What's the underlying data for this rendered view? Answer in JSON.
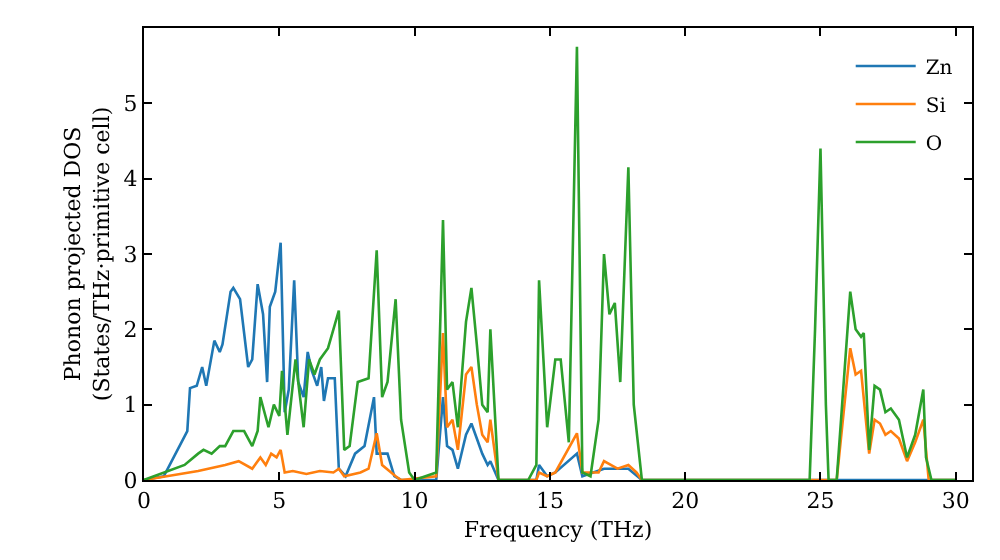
{
  "chart_data": {
    "type": "line",
    "xlabel": "Frequency (THz)",
    "ylabel": "Phonon projected DOS\n(States/THz·primitive cell)",
    "xlim": [
      0,
      30.6
    ],
    "ylim": [
      0,
      6
    ],
    "xticks": [
      0,
      5,
      10,
      15,
      20,
      25,
      30
    ],
    "yticks": [
      0,
      1,
      2,
      3,
      4,
      5
    ],
    "legend": "top right",
    "marker": "none",
    "line_style": "solid",
    "series": [
      {
        "name": "Zn",
        "color": "#1f77b4",
        "x": [
          0,
          0.73,
          1.6,
          1.7,
          1.95,
          2.15,
          2.3,
          2.6,
          2.8,
          2.9,
          3.2,
          3.3,
          3.55,
          3.85,
          4.0,
          4.2,
          4.4,
          4.55,
          4.65,
          4.85,
          5.05,
          5.2,
          5.35,
          5.55,
          5.7,
          5.9,
          6.05,
          6.2,
          6.4,
          6.55,
          6.65,
          6.8,
          7.05,
          7.2,
          7.45,
          7.8,
          8.15,
          8.5,
          8.6,
          9.0,
          9.25,
          9.5,
          10.8,
          11.05,
          11.2,
          11.4,
          11.6,
          11.9,
          12.1,
          12.3,
          12.5,
          12.7,
          12.8,
          13.1,
          14.5,
          14.6,
          14.9,
          15.2,
          16.0,
          16.2,
          17.0,
          17.9,
          18.4,
          30
        ],
        "values": [
          0,
          0.05,
          0.65,
          1.22,
          1.25,
          1.5,
          1.25,
          1.85,
          1.7,
          1.8,
          2.5,
          2.55,
          2.4,
          1.5,
          1.6,
          2.6,
          2.2,
          1.3,
          2.3,
          2.5,
          3.15,
          0.9,
          1.2,
          2.65,
          1.3,
          1.1,
          1.7,
          1.45,
          1.25,
          1.5,
          1.05,
          1.35,
          1.35,
          0.15,
          0.05,
          0.35,
          0.45,
          1.1,
          0.35,
          0.35,
          0.05,
          0,
          0,
          1.1,
          0.45,
          0.4,
          0.15,
          0.6,
          0.75,
          0.55,
          0.35,
          0.2,
          0.25,
          0,
          0,
          0.2,
          0.05,
          0.1,
          0.35,
          0.05,
          0.15,
          0.15,
          0,
          0
        ]
      },
      {
        "name": "Si",
        "color": "#ff7f0e",
        "x": [
          0,
          2,
          3,
          3.5,
          4,
          4.3,
          4.5,
          4.7,
          4.9,
          5.05,
          5.2,
          5.5,
          6,
          6.5,
          7,
          7.2,
          7.4,
          8,
          8.3,
          8.6,
          8.8,
          9.3,
          9.5,
          10.8,
          11.05,
          11.2,
          11.4,
          11.6,
          11.9,
          12.1,
          12.3,
          12.5,
          12.7,
          12.8,
          13.1,
          14.5,
          14.6,
          14.9,
          15.2,
          16.0,
          16.2,
          16.8,
          17.0,
          17.5,
          17.9,
          18.2,
          18.4,
          25.6,
          26.1,
          26.3,
          26.5,
          26.8,
          27.0,
          27.2,
          27.4,
          27.6,
          27.9,
          28.2,
          28.5,
          28.8,
          29.0,
          30
        ],
        "values": [
          0,
          0.12,
          0.2,
          0.25,
          0.15,
          0.3,
          0.2,
          0.35,
          0.3,
          0.4,
          0.1,
          0.12,
          0.08,
          0.12,
          0.1,
          0.15,
          0.05,
          0.1,
          0.15,
          0.62,
          0.2,
          0.05,
          0,
          0.05,
          1.95,
          0.7,
          0.8,
          0.4,
          1.4,
          1.5,
          1.0,
          0.6,
          0.5,
          0.8,
          0,
          0,
          0.1,
          0.05,
          0.1,
          0.62,
          0.1,
          0.1,
          0.25,
          0.15,
          0.2,
          0.1,
          0,
          0,
          1.75,
          1.4,
          1.45,
          0.35,
          0.8,
          0.75,
          0.6,
          0.65,
          0.55,
          0.25,
          0.5,
          0.8,
          0,
          0
        ]
      },
      {
        "name": "O",
        "color": "#2ca02c",
        "x": [
          0,
          1.5,
          2,
          2.2,
          2.5,
          2.8,
          3.0,
          3.3,
          3.7,
          4.0,
          4.2,
          4.3,
          4.6,
          4.8,
          5.0,
          5.1,
          5.3,
          5.6,
          5.9,
          6.1,
          6.3,
          6.5,
          6.8,
          7.0,
          7.2,
          7.4,
          7.6,
          7.9,
          8.3,
          8.6,
          8.8,
          9.0,
          9.3,
          9.5,
          9.8,
          10,
          10.8,
          11.05,
          11.2,
          11.4,
          11.6,
          11.9,
          12.1,
          12.3,
          12.5,
          12.7,
          12.8,
          13.1,
          14.2,
          14.5,
          14.6,
          14.9,
          15.2,
          15.4,
          15.7,
          16.0,
          16.2,
          16.5,
          16.8,
          17.0,
          17.2,
          17.4,
          17.6,
          17.9,
          18.1,
          18.4,
          24.6,
          24.8,
          25.0,
          25.2,
          25.3,
          25.6,
          25.8,
          26.1,
          26.3,
          26.5,
          26.6,
          26.8,
          27.0,
          27.2,
          27.4,
          27.6,
          27.9,
          28.2,
          28.5,
          28.8,
          28.9,
          29.1,
          30
        ],
        "values": [
          0,
          0.2,
          0.35,
          0.4,
          0.35,
          0.45,
          0.45,
          0.65,
          0.65,
          0.45,
          0.65,
          1.1,
          0.7,
          1.0,
          0.85,
          1.45,
          0.6,
          1.6,
          0.7,
          1.6,
          1.4,
          1.6,
          1.75,
          2.0,
          2.25,
          0.4,
          0.45,
          1.3,
          1.35,
          3.05,
          1.1,
          1.3,
          2.4,
          0.8,
          0.1,
          0,
          0.1,
          3.45,
          1.2,
          1.3,
          0.7,
          2.1,
          2.55,
          1.8,
          1.0,
          0.9,
          2.0,
          0,
          0,
          0.2,
          2.65,
          0.7,
          1.6,
          1.6,
          0.5,
          5.75,
          0.1,
          0.05,
          0.8,
          3.0,
          2.2,
          2.35,
          1.3,
          4.15,
          1.0,
          0,
          0,
          2.0,
          4.4,
          1.0,
          0,
          0,
          1.0,
          2.5,
          2.0,
          1.9,
          1.95,
          0.4,
          1.25,
          1.2,
          0.9,
          0.95,
          0.8,
          0.3,
          0.6,
          1.2,
          0.3,
          0,
          0
        ]
      }
    ]
  }
}
